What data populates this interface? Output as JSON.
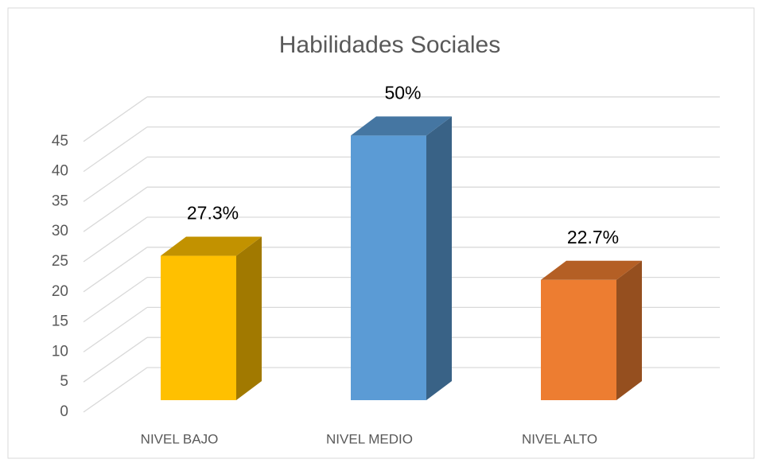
{
  "chart_data": {
    "type": "bar3d",
    "title": "Habilidades Sociales",
    "categories": [
      "NIVEL BAJO",
      "NIVEL MEDIO",
      "NIVEL ALTO"
    ],
    "values": [
      24,
      44,
      20
    ],
    "data_labels": [
      "27.3%",
      "50%",
      "22.7%"
    ],
    "colors": [
      "#ffc000",
      "#5b9bd5",
      "#ed7d31"
    ],
    "ylim": [
      0,
      45
    ],
    "yticks": [
      0,
      5,
      10,
      15,
      20,
      25,
      30,
      35,
      40,
      45
    ],
    "grid": true
  }
}
